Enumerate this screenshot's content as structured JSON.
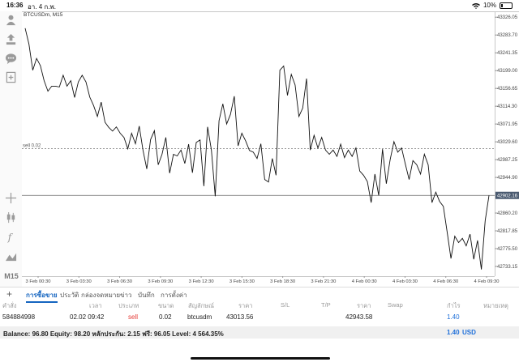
{
  "status": {
    "time": "16:36",
    "date": "อา. 4 ก.พ.",
    "battery": "10%"
  },
  "chart": {
    "symbol": "BTCUSDm, M15",
    "sell_label": "sell 0.02",
    "current_price": "42902.16",
    "price_labels": [
      "43326.05",
      "43283.70",
      "43241.35",
      "43199.00",
      "43156.65",
      "43114.30",
      "43071.95",
      "43029.60",
      "42987.25",
      "42944.90",
      "42902.16",
      "42860.20",
      "42817.85",
      "42775.50",
      "42733.15"
    ],
    "time_labels": [
      "3 Feb 00:30",
      "3 Feb 03:30",
      "3 Feb 06:30",
      "3 Feb 09:30",
      "3 Feb 12:30",
      "3 Feb 15:30",
      "3 Feb 18:30",
      "3 Feb 21:30",
      "4 Feb 00:30",
      "4 Feb 03:30",
      "4 Feb 06:30",
      "4 Feb 09:30"
    ],
    "timeframe": "M15"
  },
  "chart_data": {
    "type": "line",
    "title": "BTCUSDm, M15",
    "ylim": [
      42710,
      43340
    ],
    "sell_level": 43013.56,
    "current_price": 42902.16,
    "values": [
      43300,
      43262,
      43200,
      43228,
      43211,
      43175,
      43150,
      43162,
      43162,
      43160,
      43188,
      43162,
      43175,
      43135,
      43172,
      43188,
      43172,
      43136,
      43116,
      43090,
      43124,
      43076,
      43064,
      43055,
      43065,
      43050,
      43040,
      43013,
      43050,
      43025,
      43067,
      43010,
      42965,
      43035,
      43056,
      42975,
      43000,
      43040,
      42955,
      43000,
      42996,
      43010,
      42978,
      43024,
      42956,
      43028,
      43034,
      42924,
      43065,
      43010,
      42900,
      43080,
      43120,
      43072,
      43095,
      43138,
      43020,
      43050,
      43032,
      43009,
      43005,
      42990,
      43025,
      42940,
      42934,
      42990,
      42950,
      43200,
      43210,
      43140,
      43190,
      43165,
      43090,
      43110,
      43180,
      43010,
      43045,
      43015,
      43040,
      43010,
      43000,
      43010,
      42995,
      43024,
      42992,
      43010,
      42995,
      43015,
      42960,
      42950,
      42935,
      42885,
      42953,
      42902,
      43012,
      42930,
      42987,
      43030,
      43005,
      43015,
      42976,
      42940,
      42985,
      42975,
      42953,
      43000,
      42975,
      42885,
      42910,
      42888,
      42876,
      42815,
      42752,
      42805,
      42790,
      42800,
      42782,
      42810,
      42750,
      42795,
      42726,
      42842,
      42902
    ]
  },
  "left_toolbar": {
    "m15": "M15"
  },
  "tabs": {
    "plus": "+",
    "items": [
      "การซื้อขาย",
      "ประวัติ",
      "กล่องจดหมาย",
      "ข่าว",
      "บันทึก",
      "การตั้งค่า"
    ]
  },
  "table": {
    "headers": [
      "คำสั่ง",
      "เวลา",
      "ประเภท",
      "ขนาด",
      "สัญลักษณ์",
      "ราคา",
      "S/L",
      "T/P",
      "ราคา",
      "Swap",
      "กำไร",
      "หมายเหตุ"
    ],
    "row": {
      "order": "584884998",
      "time": "02.02 09:42",
      "type": "sell",
      "size": "0.02",
      "symbol": "btcusdm",
      "open_price": "43013.56",
      "price": "42943.58",
      "profit": "1.40"
    }
  },
  "balance": {
    "text": "Balance: 96.80 Equity: 98.20 หลักประกัน: 2.15 ฟรี: 96.05 Level: 4 564.35%",
    "profit": "1.40",
    "currency": "USD"
  }
}
